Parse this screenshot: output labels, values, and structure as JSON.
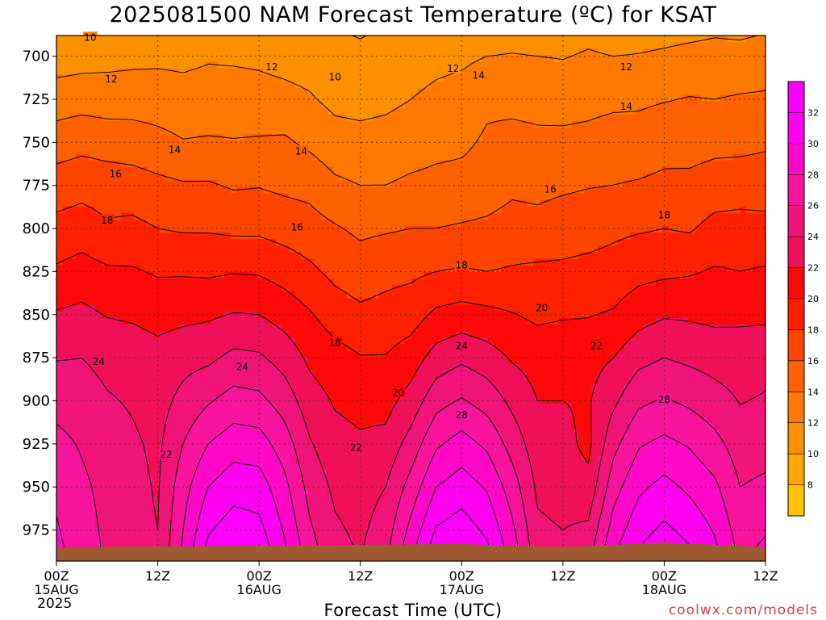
{
  "title": "2025081500 NAM Forecast Temperature (ºC) for KSAT",
  "xlabel": "Forecast Time (UTC)",
  "credit": "coolwx.com/models",
  "year_label": "2025",
  "chart_data": {
    "type": "heatmap",
    "title": "2025081500 NAM Forecast Temperature (ºC) for KSAT",
    "xlabel": "Forecast Time (UTC)",
    "ylabel": "",
    "x_range_hours": [
      0,
      84
    ],
    "y_range_hpa": [
      688,
      993
    ],
    "y_reversed": true,
    "grid": true,
    "x_ticks": [
      {
        "hour": 0,
        "label": "00Z",
        "sub": "15AUG"
      },
      {
        "hour": 12,
        "label": "12Z",
        "sub": ""
      },
      {
        "hour": 24,
        "label": "00Z",
        "sub": "16AUG"
      },
      {
        "hour": 36,
        "label": "12Z",
        "sub": ""
      },
      {
        "hour": 48,
        "label": "00Z",
        "sub": "17AUG"
      },
      {
        "hour": 60,
        "label": "12Z",
        "sub": ""
      },
      {
        "hour": 72,
        "label": "00Z",
        "sub": "18AUG"
      },
      {
        "hour": 84,
        "label": "12Z",
        "sub": ""
      }
    ],
    "y_ticks": [
      700,
      725,
      750,
      775,
      800,
      825,
      850,
      875,
      900,
      925,
      950,
      975
    ],
    "colorbar": {
      "levels": [
        8,
        10,
        12,
        14,
        16,
        18,
        20,
        22,
        24,
        26,
        28,
        30,
        32
      ],
      "colors": [
        "#ffc400",
        "#ffa800",
        "#ff9000",
        "#ff7800",
        "#ff6000",
        "#ff4400",
        "#ff2000",
        "#ff0808",
        "#f0105a",
        "#f01478",
        "#f8149c",
        "#ff08c8",
        "#ff00f0",
        "#ff00ff"
      ]
    },
    "ground_color": "#9f5a32",
    "profile_pressure_hpa": [
      700,
      725,
      750,
      775,
      800,
      825,
      850,
      875,
      900,
      925,
      950,
      975
    ],
    "series": [
      {
        "hour": 0,
        "temps": [
          11.0,
          13.0,
          15.0,
          17.0,
          18.6,
          20.3,
          22.2,
          23.9,
          25.3,
          26.6,
          27.6,
          28.2
        ]
      },
      {
        "hour": 3,
        "temps": [
          11.2,
          13.2,
          15.4,
          17.3,
          19.0,
          20.8,
          22.5,
          24.0,
          25.0,
          25.8,
          26.4,
          26.8
        ]
      },
      {
        "hour": 6,
        "temps": [
          11.4,
          13.0,
          15.2,
          17.0,
          18.3,
          20.3,
          21.9,
          23.4,
          24.2,
          24.9,
          25.4,
          25.6
        ]
      },
      {
        "hour": 9,
        "temps": [
          11.5,
          13.1,
          15.0,
          16.9,
          18.5,
          20.2,
          21.7,
          23.2,
          23.8,
          24.3,
          24.6,
          24.7
        ]
      },
      {
        "hour": 12,
        "temps": [
          11.6,
          13.0,
          14.6,
          16.5,
          18.0,
          19.8,
          21.3,
          22.7,
          23.2,
          23.6,
          23.8,
          24.0
        ]
      },
      {
        "hour": 15,
        "temps": [
          11.5,
          12.8,
          14.1,
          16.2,
          17.8,
          19.8,
          21.5,
          23.3,
          24.6,
          26.0,
          27.2,
          28.0
        ]
      },
      {
        "hour": 18,
        "temps": [
          11.8,
          12.9,
          14.2,
          16.2,
          17.8,
          19.7,
          21.7,
          23.6,
          25.8,
          28.0,
          30.0,
          31.8
        ]
      },
      {
        "hour": 21,
        "temps": [
          11.7,
          13.0,
          14.1,
          15.8,
          17.6,
          19.9,
          22.1,
          24.5,
          26.8,
          29.1,
          31.2,
          33.0
        ]
      },
      {
        "hour": 24,
        "temps": [
          11.6,
          12.8,
          14.2,
          15.9,
          17.6,
          19.8,
          22.0,
          24.3,
          26.5,
          28.9,
          31.0,
          32.6
        ]
      },
      {
        "hour": 27,
        "temps": [
          11.3,
          12.6,
          14.3,
          15.6,
          17.2,
          19.2,
          21.2,
          23.2,
          25.1,
          27.0,
          28.6,
          29.8
        ]
      },
      {
        "hour": 30,
        "temps": [
          11.1,
          12.2,
          13.6,
          15.4,
          16.8,
          18.4,
          20.2,
          21.6,
          22.9,
          24.2,
          25.3,
          26.3
        ]
      },
      {
        "hour": 33,
        "temps": [
          10.6,
          11.5,
          12.8,
          14.4,
          16.2,
          17.5,
          19.0,
          20.8,
          21.8,
          22.7,
          23.6,
          24.3
        ]
      },
      {
        "hour": 36,
        "temps": [
          10.4,
          11.4,
          12.6,
          14.0,
          15.6,
          17.0,
          18.4,
          20.1,
          21.4,
          22.3,
          23.1,
          23.6
        ]
      },
      {
        "hour": 39,
        "temps": [
          10.7,
          11.6,
          12.7,
          14.0,
          15.8,
          17.4,
          18.7,
          20.1,
          21.3,
          22.6,
          24.0,
          25.0
        ]
      },
      {
        "hour": 42,
        "temps": [
          11.0,
          12.0,
          13.0,
          14.4,
          16.0,
          17.6,
          19.1,
          21.0,
          22.8,
          24.8,
          26.8,
          28.6
        ]
      },
      {
        "hour": 45,
        "temps": [
          11.4,
          12.5,
          13.4,
          14.6,
          16.0,
          18.0,
          20.4,
          22.8,
          25.3,
          27.7,
          30.0,
          32.2
        ]
      },
      {
        "hour": 48,
        "temps": [
          11.6,
          12.8,
          13.6,
          14.7,
          16.2,
          18.2,
          20.8,
          23.6,
          26.2,
          28.8,
          31.0,
          33.0
        ]
      },
      {
        "hour": 51,
        "temps": [
          12.0,
          13.6,
          14.3,
          15.0,
          16.4,
          18.0,
          20.5,
          22.9,
          25.2,
          27.6,
          29.8,
          31.6
        ]
      },
      {
        "hour": 54,
        "temps": [
          12.1,
          13.5,
          14.6,
          15.6,
          16.8,
          18.2,
          20.1,
          21.8,
          23.5,
          25.2,
          27.0,
          28.4
        ]
      },
      {
        "hour": 57,
        "temps": [
          12.0,
          13.4,
          14.4,
          15.5,
          16.6,
          18.4,
          19.6,
          21.2,
          22.0,
          22.8,
          23.6,
          24.4
        ]
      },
      {
        "hour": 60,
        "temps": [
          11.9,
          13.2,
          14.5,
          15.7,
          17.0,
          18.4,
          19.8,
          21.4,
          22.0,
          22.6,
          23.2,
          24.0
        ]
      },
      {
        "hour": 63,
        "temps": [
          12.2,
          13.4,
          14.6,
          15.9,
          17.2,
          18.6,
          19.9,
          21.3,
          21.8,
          21.5,
          22.6,
          24.4
        ]
      },
      {
        "hour": 66,
        "temps": [
          12.0,
          13.6,
          14.9,
          16.0,
          17.6,
          18.8,
          20.2,
          22.0,
          23.6,
          25.4,
          27.2,
          28.9
        ]
      },
      {
        "hour": 69,
        "temps": [
          12.1,
          13.7,
          14.8,
          16.2,
          17.8,
          19.4,
          21.2,
          23.4,
          25.6,
          27.8,
          29.6,
          31.3
        ]
      },
      {
        "hour": 72,
        "temps": [
          12.3,
          13.9,
          15.2,
          16.5,
          18.0,
          19.6,
          21.8,
          24.0,
          26.2,
          28.5,
          30.6,
          32.4
        ]
      },
      {
        "hour": 75,
        "temps": [
          12.5,
          14.1,
          15.1,
          16.6,
          17.8,
          19.8,
          21.7,
          23.6,
          25.6,
          27.8,
          29.6,
          31.4
        ]
      },
      {
        "hour": 78,
        "temps": [
          12.6,
          14.0,
          15.4,
          17.0,
          18.6,
          20.2,
          21.5,
          23.2,
          24.8,
          26.6,
          28.4,
          29.8
        ]
      },
      {
        "hour": 81,
        "temps": [
          12.6,
          14.2,
          15.5,
          17.0,
          18.8,
          20.0,
          21.6,
          23.0,
          23.9,
          25.0,
          26.0,
          27.0
        ]
      },
      {
        "hour": 84,
        "temps": [
          12.8,
          14.3,
          15.7,
          17.1,
          18.6,
          20.2,
          21.6,
          23.3,
          24.2,
          25.2,
          26.4,
          27.8
        ]
      }
    ],
    "contour_labels": [
      {
        "text": "10",
        "hour": 4.0,
        "p": 689
      },
      {
        "text": "12",
        "hour": 6.5,
        "p": 713
      },
      {
        "text": "12",
        "hour": 25.5,
        "p": 706
      },
      {
        "text": "10",
        "hour": 33.0,
        "p": 712
      },
      {
        "text": "12",
        "hour": 47.0,
        "p": 707
      },
      {
        "text": "14",
        "hour": 50.0,
        "p": 711
      },
      {
        "text": "12",
        "hour": 67.5,
        "p": 706
      },
      {
        "text": "14",
        "hour": 67.5,
        "p": 729
      },
      {
        "text": "14",
        "hour": 14.0,
        "p": 754
      },
      {
        "text": "14",
        "hour": 29.0,
        "p": 755
      },
      {
        "text": "16",
        "hour": 7.0,
        "p": 768
      },
      {
        "text": "16",
        "hour": 58.5,
        "p": 777
      },
      {
        "text": "16",
        "hour": 28.5,
        "p": 799
      },
      {
        "text": "18",
        "hour": 6.0,
        "p": 795
      },
      {
        "text": "18",
        "hour": 48.0,
        "p": 821
      },
      {
        "text": "18",
        "hour": 72.0,
        "p": 792
      },
      {
        "text": "20",
        "hour": 57.5,
        "p": 846
      },
      {
        "text": "18",
        "hour": 33.0,
        "p": 866
      },
      {
        "text": "20",
        "hour": 40.5,
        "p": 895
      },
      {
        "text": "22",
        "hour": 64.0,
        "p": 868
      },
      {
        "text": "24",
        "hour": 5.0,
        "p": 877
      },
      {
        "text": "24",
        "hour": 22.0,
        "p": 880
      },
      {
        "text": "24",
        "hour": 48.0,
        "p": 868
      },
      {
        "text": "28",
        "hour": 48.0,
        "p": 908
      },
      {
        "text": "28",
        "hour": 72.0,
        "p": 899
      },
      {
        "text": "22",
        "hour": 13.0,
        "p": 931
      },
      {
        "text": "22",
        "hour": 35.5,
        "p": 927
      }
    ]
  }
}
